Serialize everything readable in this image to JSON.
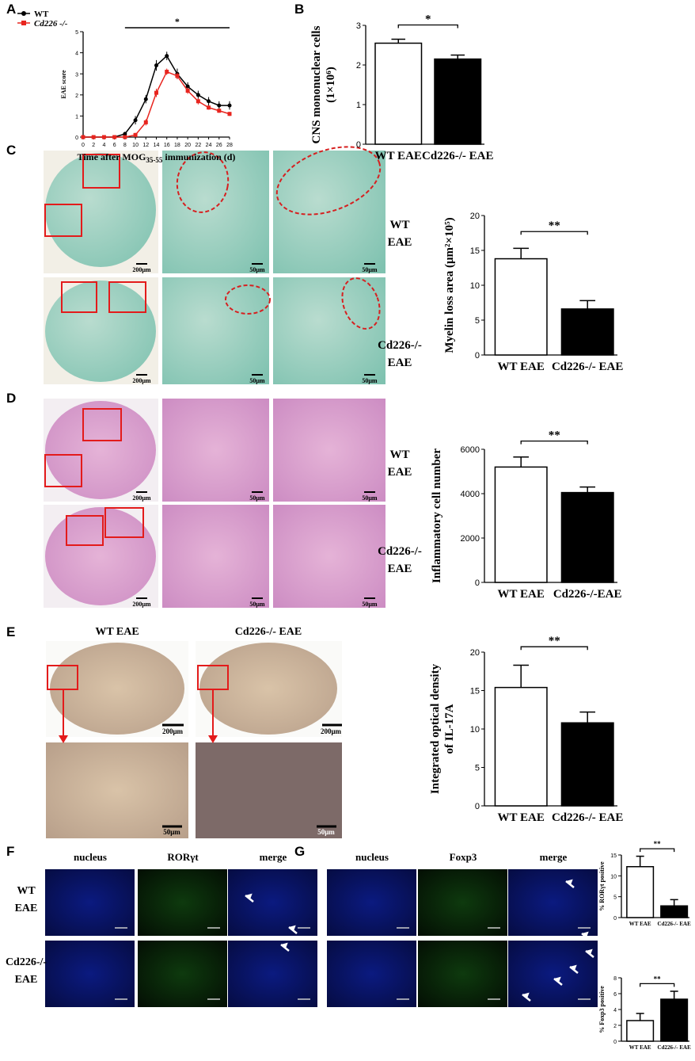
{
  "panel_labels": [
    "A",
    "B",
    "C",
    "D",
    "E",
    "F",
    "G"
  ],
  "row_labels": {
    "wt": [
      "WT",
      "EAE"
    ],
    "ko": [
      "Cd226-/-",
      "EAE"
    ]
  },
  "scale_bars": [
    "200μm",
    "50μm"
  ],
  "e_headers": [
    "WT EAE",
    "Cd226-/- EAE"
  ],
  "f_headers": [
    "nucleus",
    "RORγt",
    "merge"
  ],
  "g_headers": [
    "nucleus",
    "Foxp3",
    "merge"
  ],
  "chart_data": [
    {
      "type": "line",
      "ylabel": [
        "EAE score"
      ],
      "xlabel": [
        "Time after MOG",
        "35-55",
        " immunization (d)"
      ],
      "x": [
        0,
        2,
        4,
        6,
        8,
        10,
        12,
        14,
        16,
        18,
        20,
        22,
        24,
        26,
        28
      ],
      "series": [
        {
          "name": "WT",
          "color": "#000000",
          "values": [
            0,
            0,
            0,
            0,
            0.15,
            0.8,
            1.8,
            3.4,
            3.85,
            3.0,
            2.4,
            2.0,
            1.7,
            1.5,
            1.5
          ],
          "errors": [
            0,
            0,
            0,
            0,
            0.1,
            0.2,
            0.2,
            0.25,
            0.2,
            0.25,
            0.2,
            0.2,
            0.2,
            0.2,
            0.2
          ]
        },
        {
          "name": "Cd226 -/-",
          "color": "#e8251f",
          "values": [
            0,
            0,
            0,
            0,
            0,
            0.1,
            0.7,
            2.1,
            3.1,
            2.9,
            2.2,
            1.7,
            1.4,
            1.25,
            1.1
          ],
          "errors": [
            0,
            0,
            0,
            0,
            0,
            0.1,
            0.15,
            0.2,
            0.15,
            0.15,
            0.15,
            0.15,
            0.1,
            0.1,
            0.1
          ]
        }
      ],
      "xlim": [
        0,
        28
      ],
      "xticks": [
        0,
        2,
        4,
        6,
        8,
        10,
        12,
        14,
        16,
        18,
        20,
        22,
        24,
        26,
        28
      ],
      "ylim": [
        0,
        5
      ],
      "yticks": [
        0,
        1,
        2,
        3,
        4,
        5
      ],
      "significance": "*"
    },
    {
      "type": "bar",
      "ylabel": [
        "CNS mononuclear cells",
        "(1×10⁶)"
      ],
      "categories": [
        "WT EAE",
        "Cd226-/- EAE"
      ],
      "values": [
        2.55,
        2.15
      ],
      "errors": [
        0.1,
        0.1
      ],
      "colors": [
        "#ffffff",
        "#000000"
      ],
      "ylim": [
        0,
        3
      ],
      "yticks": [
        0,
        1,
        2,
        3
      ],
      "significance": "*"
    },
    {
      "type": "bar",
      "ylabel": [
        "Myelin loss area (μm²×10⁵)"
      ],
      "categories": [
        "WT EAE",
        "Cd226-/- EAE"
      ],
      "values": [
        13.8,
        6.6
      ],
      "errors": [
        1.5,
        1.2
      ],
      "colors": [
        "#ffffff",
        "#000000"
      ],
      "ylim": [
        0,
        20
      ],
      "yticks": [
        0,
        5,
        10,
        15,
        20
      ],
      "significance": "**"
    },
    {
      "type": "bar",
      "ylabel": [
        "Inflammatory cell number"
      ],
      "categories": [
        "WT EAE",
        "Cd226-/-EAE"
      ],
      "values": [
        5200,
        4050
      ],
      "errors": [
        450,
        250
      ],
      "colors": [
        "#ffffff",
        "#000000"
      ],
      "ylim": [
        0,
        6000
      ],
      "yticks": [
        0,
        2000,
        4000,
        6000
      ],
      "significance": "**"
    },
    {
      "type": "bar",
      "ylabel": [
        "Integrated optical density",
        "of IL-17A"
      ],
      "categories": [
        "WT EAE",
        "Cd226-/- EAE"
      ],
      "values": [
        15.4,
        10.8
      ],
      "errors": [
        2.9,
        1.4
      ],
      "colors": [
        "#ffffff",
        "#000000"
      ],
      "ylim": [
        0,
        20
      ],
      "yticks": [
        0,
        5,
        10,
        15,
        20
      ],
      "significance": "**"
    },
    {
      "type": "bar",
      "ylabel": [
        "% RORγt positive"
      ],
      "categories": [
        "WT EAE",
        "Cd226-/- EAE"
      ],
      "values": [
        12.2,
        2.8
      ],
      "errors": [
        2.5,
        1.5
      ],
      "colors": [
        "#ffffff",
        "#000000"
      ],
      "ylim": [
        0,
        15
      ],
      "yticks": [
        0,
        5,
        10,
        15
      ],
      "significance": "**"
    },
    {
      "type": "bar",
      "ylabel": [
        "% Foxp3 positive"
      ],
      "categories": [
        "WT EAE",
        "Cd226-/- EAE"
      ],
      "values": [
        2.6,
        5.3
      ],
      "errors": [
        0.9,
        1.0
      ],
      "colors": [
        "#ffffff",
        "#000000"
      ],
      "ylim": [
        0,
        8
      ],
      "yticks": [
        0,
        2,
        4,
        6,
        8
      ],
      "significance": "**"
    }
  ]
}
